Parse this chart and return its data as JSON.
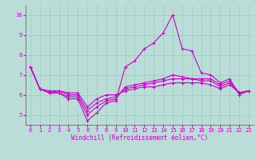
{
  "xlabel": "Windchill (Refroidissement éolien,°C)",
  "bg_color": "#bbddd8",
  "grid_color": "#99ccbb",
  "line_color": "#cc00cc",
  "xlim_min": -0.5,
  "xlim_max": 23.5,
  "ylim_min": 4.5,
  "ylim_max": 10.5,
  "yticks": [
    5,
    6,
    7,
    8,
    9,
    10
  ],
  "xticks": [
    0,
    1,
    2,
    3,
    4,
    5,
    6,
    7,
    8,
    9,
    10,
    11,
    12,
    13,
    14,
    15,
    16,
    17,
    18,
    19,
    20,
    21,
    22,
    23
  ],
  "lines": [
    [
      7.4,
      6.3,
      6.1,
      6.1,
      5.8,
      5.8,
      4.7,
      5.1,
      5.6,
      5.7,
      7.4,
      7.7,
      8.3,
      8.6,
      9.1,
      10.0,
      8.3,
      8.2,
      7.1,
      7.0,
      6.6,
      6.8,
      6.0,
      6.2
    ],
    [
      7.4,
      6.3,
      6.1,
      6.1,
      5.9,
      5.9,
      5.0,
      5.4,
      5.7,
      5.8,
      6.4,
      6.5,
      6.6,
      6.7,
      6.8,
      7.0,
      6.9,
      6.8,
      6.8,
      6.8,
      6.5,
      6.7,
      6.1,
      6.2
    ],
    [
      7.4,
      6.3,
      6.1,
      6.2,
      6.0,
      6.0,
      5.2,
      5.6,
      5.8,
      5.9,
      6.3,
      6.4,
      6.5,
      6.6,
      6.7,
      6.8,
      6.8,
      6.8,
      6.7,
      6.7,
      6.4,
      6.6,
      6.1,
      6.2
    ],
    [
      7.4,
      6.3,
      6.2,
      6.2,
      6.1,
      6.1,
      5.4,
      5.8,
      6.0,
      6.0,
      6.2,
      6.3,
      6.4,
      6.4,
      6.5,
      6.6,
      6.6,
      6.6,
      6.6,
      6.5,
      6.3,
      6.5,
      6.1,
      6.2
    ]
  ],
  "spine_color": "#555555",
  "tick_labelsize": 5,
  "xlabel_fontsize": 5.5,
  "linewidth": 0.8,
  "markersize": 3.0,
  "markeredgewidth": 0.7
}
